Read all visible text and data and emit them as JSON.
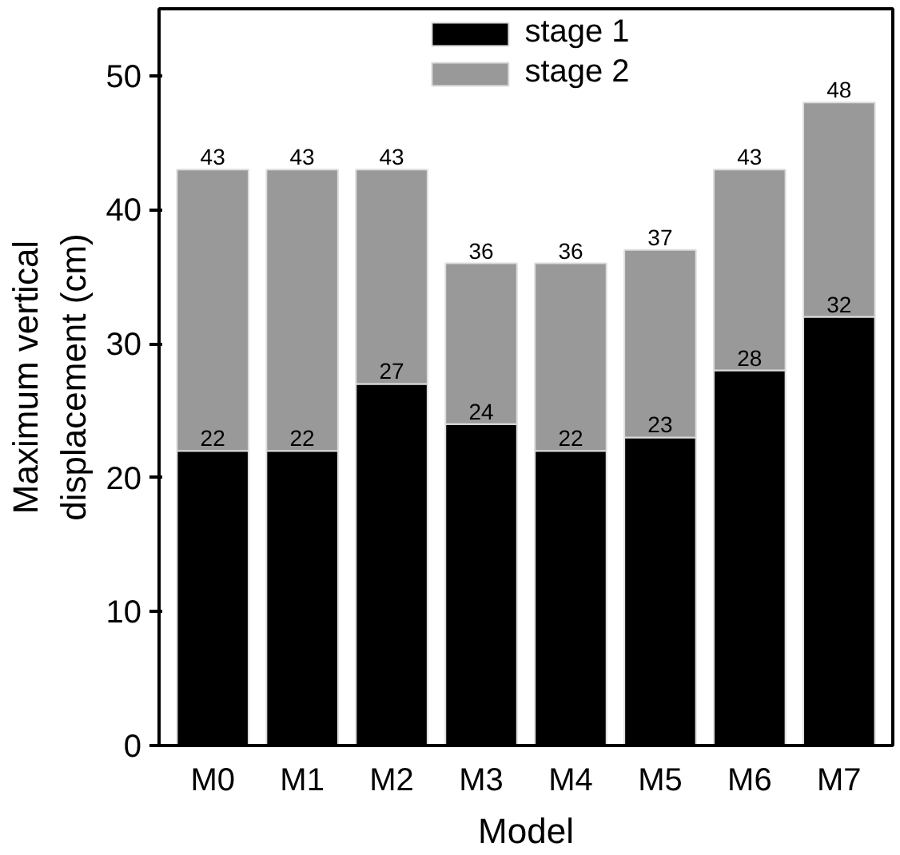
{
  "chart_data": {
    "type": "bar",
    "stacked": true,
    "xlabel": "Model",
    "ylabel": "Maximum vertical\ndisplacement (cm)",
    "categories": [
      "M0",
      "M1",
      "M2",
      "M3",
      "M4",
      "M5",
      "M6",
      "M7"
    ],
    "series": [
      {
        "name": "stage 1",
        "color": "#000000",
        "values": [
          22,
          22,
          27,
          24,
          22,
          23,
          28,
          32
        ],
        "value_labels": [
          "22",
          "22",
          "27",
          "24",
          "22",
          "23",
          "28",
          "32"
        ]
      },
      {
        "name": "stage 2",
        "color": "#999999",
        "values": [
          21,
          21,
          16,
          12,
          14,
          14,
          15,
          16
        ]
      }
    ],
    "totals": [
      "43",
      "43",
      "43",
      "36",
      "36",
      "37",
      "43",
      "48"
    ],
    "ylim": [
      0,
      55
    ],
    "yticks": [
      0,
      10,
      20,
      30,
      40,
      50
    ],
    "grid": false,
    "legend": "top"
  }
}
